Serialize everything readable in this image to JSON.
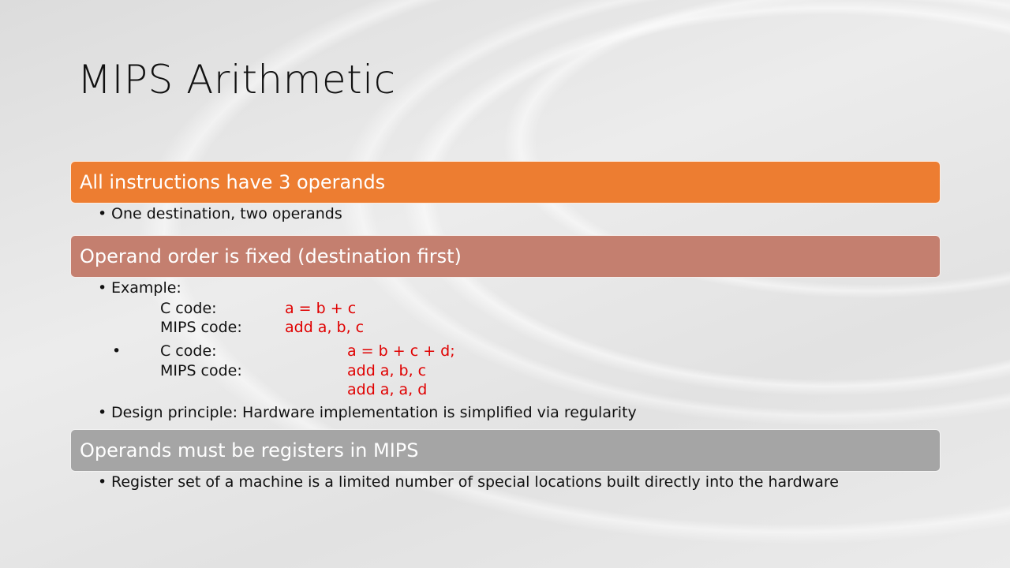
{
  "slide": {
    "title": "MIPS Arithmetic",
    "sections": [
      {
        "header": "All instructions have 3 operands",
        "color": "#ed7d31",
        "bullets": [
          "One destination, two operands"
        ]
      },
      {
        "header": "Operand order is fixed (destination first)",
        "color": "#c47f6f",
        "bullets": [
          "Example:",
          "Design principle: Hardware implementation is simplified via regularity"
        ],
        "example1": {
          "c_label": "C code:",
          "c_value": "a = b + c",
          "mips_label": "MIPS code:",
          "mips_value": "add a, b, c"
        },
        "example2": {
          "c_label": "C code:",
          "c_value": "a = b + c + d;",
          "mips_label": "MIPS code:",
          "mips_value_1": "add a, b, c",
          "mips_value_2": "add a, a, d"
        }
      },
      {
        "header": "Operands must be registers in MIPS",
        "color": "#a5a5a5",
        "bullets": [
          "Register set of a machine is a limited number of special locations built directly into the hardware"
        ]
      }
    ],
    "code_color": "#e00000"
  }
}
